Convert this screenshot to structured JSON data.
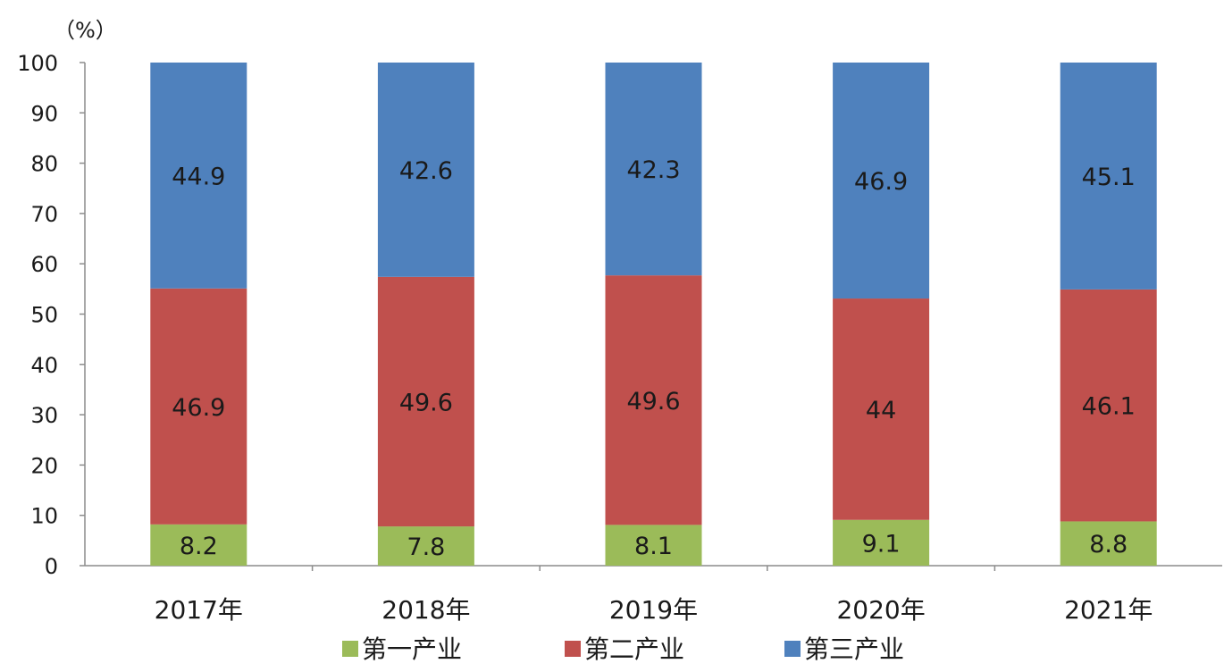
{
  "chart_data": {
    "type": "bar",
    "stacked": true,
    "unit_label": "（%）",
    "categories": [
      "2017年",
      "2018年",
      "2019年",
      "2020年",
      "2021年"
    ],
    "series": [
      {
        "name": "第一产业",
        "color": "#9bbb59",
        "values": [
          8.2,
          7.8,
          8.1,
          9.1,
          8.8
        ]
      },
      {
        "name": "第二产业",
        "color": "#c0504d",
        "values": [
          46.9,
          49.6,
          49.6,
          44,
          46.1
        ]
      },
      {
        "name": "第三产业",
        "color": "#4f81bd",
        "values": [
          44.9,
          42.6,
          42.3,
          46.9,
          45.1
        ]
      }
    ],
    "ylim": [
      0,
      100
    ],
    "yticks": [
      0,
      10,
      20,
      30,
      40,
      50,
      60,
      70,
      80,
      90,
      100
    ],
    "grid": false,
    "legend_position": "bottom"
  }
}
